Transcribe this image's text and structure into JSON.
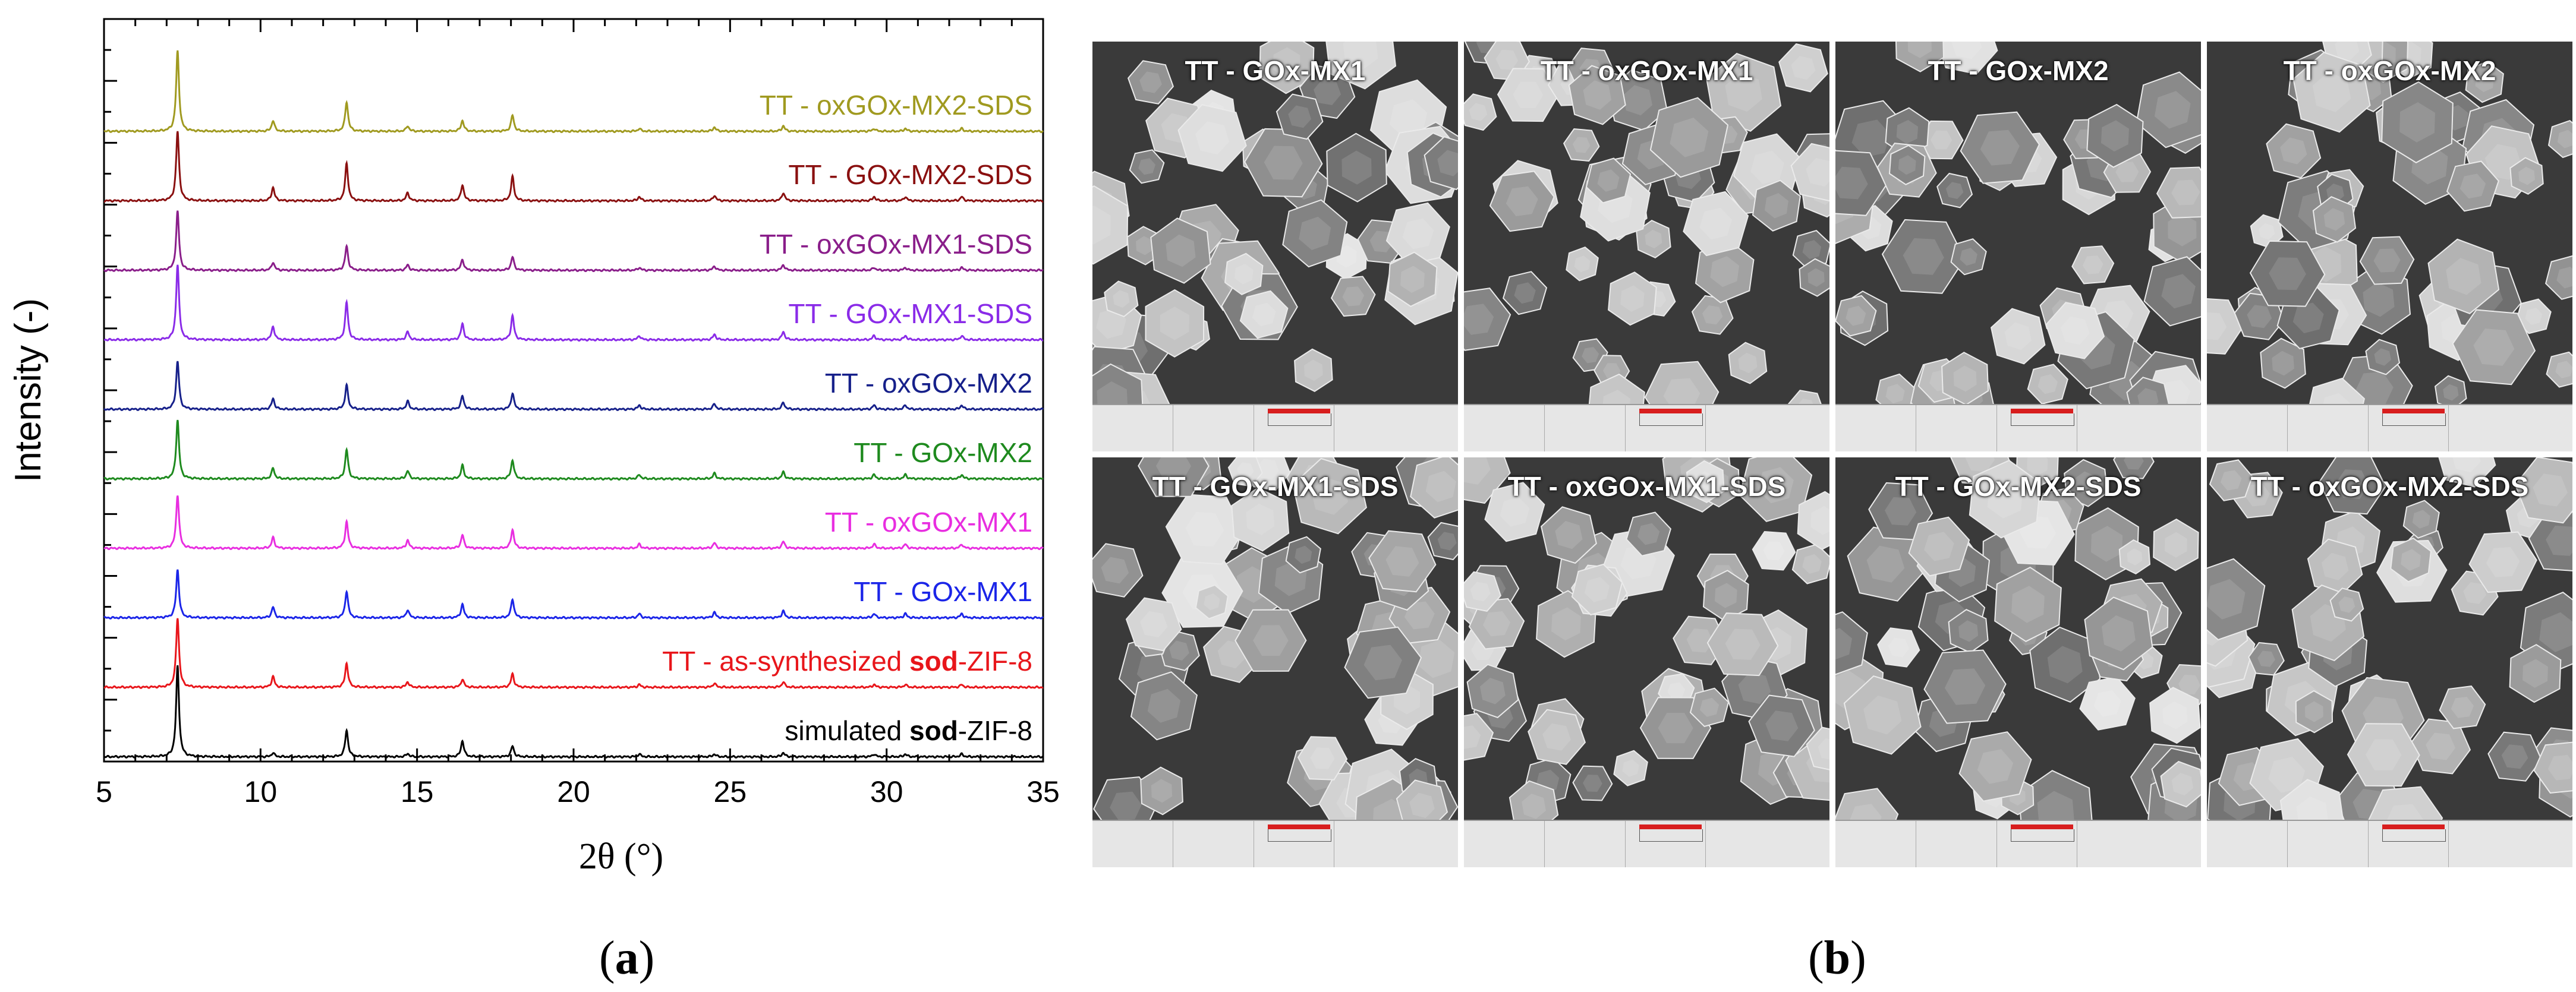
{
  "panel_a_label": "a",
  "panel_b_label": "b",
  "chart_data": {
    "type": "line",
    "xlabel": "2θ (°)",
    "ylabel": "Intensity (-)",
    "xlim": [
      5,
      35
    ],
    "x_ticks": [
      5,
      10,
      15,
      20,
      25,
      30,
      35
    ],
    "grid": false,
    "legend": "inline labels right of each trace",
    "series": [
      {
        "name": "simulated sod-ZIF-8",
        "name_parts": [
          "simulated ",
          "sod",
          "-ZIF-8"
        ],
        "color": "#000000",
        "peaks": [
          [
            7.35,
            34
          ],
          [
            10.4,
            1.5
          ],
          [
            12.75,
            10
          ],
          [
            14.7,
            1.2
          ],
          [
            16.45,
            6
          ],
          [
            18.05,
            4
          ],
          [
            22.1,
            1
          ],
          [
            24.5,
            1
          ],
          [
            26.7,
            1.5
          ],
          [
            29.6,
            1
          ],
          [
            30.6,
            1
          ],
          [
            32.4,
            1
          ]
        ]
      },
      {
        "name": "TT - as-synthesized sod-ZIF-8",
        "name_parts": [
          "TT - as-synthesized ",
          "sod",
          "-ZIF-8"
        ],
        "color": "#e8161b",
        "peaks": [
          [
            7.35,
            26
          ],
          [
            10.4,
            4
          ],
          [
            12.75,
            9
          ],
          [
            14.7,
            2
          ],
          [
            16.45,
            3
          ],
          [
            18.05,
            5
          ],
          [
            22.1,
            1
          ],
          [
            24.5,
            1.5
          ],
          [
            26.7,
            2
          ],
          [
            29.6,
            1
          ],
          [
            30.6,
            1
          ],
          [
            32.4,
            1
          ]
        ]
      },
      {
        "name": "TT - GOx-MX1",
        "color": "#1b25e8",
        "peaks": [
          [
            7.35,
            18
          ],
          [
            10.4,
            4
          ],
          [
            12.75,
            10
          ],
          [
            14.7,
            3
          ],
          [
            16.45,
            5
          ],
          [
            18.05,
            7
          ],
          [
            22.1,
            1.5
          ],
          [
            24.5,
            2
          ],
          [
            26.7,
            2.5
          ],
          [
            29.6,
            1.5
          ],
          [
            30.6,
            1.5
          ],
          [
            32.4,
            1.5
          ]
        ]
      },
      {
        "name": "TT - oxGOx-MX1",
        "color": "#e82ee0",
        "peaks": [
          [
            7.35,
            20
          ],
          [
            10.4,
            4
          ],
          [
            12.75,
            10
          ],
          [
            14.7,
            3
          ],
          [
            16.45,
            5
          ],
          [
            18.05,
            7
          ],
          [
            22.1,
            1.5
          ],
          [
            24.5,
            2
          ],
          [
            26.7,
            2.5
          ],
          [
            29.6,
            1.5
          ],
          [
            30.6,
            1.5
          ],
          [
            32.4,
            1.5
          ]
        ]
      },
      {
        "name": "TT - GOx-MX2",
        "color": "#1e8a1e",
        "peaks": [
          [
            7.35,
            22
          ],
          [
            10.4,
            4
          ],
          [
            12.75,
            11
          ],
          [
            14.7,
            3
          ],
          [
            16.45,
            5
          ],
          [
            18.05,
            7
          ],
          [
            22.1,
            1.5
          ],
          [
            24.5,
            2
          ],
          [
            26.7,
            2.5
          ],
          [
            29.6,
            1.5
          ],
          [
            30.6,
            1.5
          ],
          [
            32.4,
            1.5
          ]
        ]
      },
      {
        "name": "TT - oxGOx-MX2",
        "color": "#16208a",
        "peaks": [
          [
            7.35,
            18
          ],
          [
            10.4,
            4
          ],
          [
            12.75,
            9
          ],
          [
            14.7,
            3
          ],
          [
            16.45,
            5
          ],
          [
            18.05,
            6
          ],
          [
            22.1,
            1.5
          ],
          [
            24.5,
            2
          ],
          [
            26.7,
            2.5
          ],
          [
            29.6,
            1.5
          ],
          [
            30.6,
            1.5
          ],
          [
            32.4,
            1.5
          ]
        ]
      },
      {
        "name": "TT - GOx-MX1-SDS",
        "color": "#8a2be8",
        "peaks": [
          [
            7.35,
            28
          ],
          [
            10.4,
            5
          ],
          [
            12.75,
            14
          ],
          [
            14.7,
            3
          ],
          [
            16.45,
            6
          ],
          [
            18.05,
            9
          ],
          [
            22.1,
            1.5
          ],
          [
            24.5,
            2
          ],
          [
            26.7,
            3
          ],
          [
            29.6,
            1.5
          ],
          [
            30.6,
            1.5
          ],
          [
            32.4,
            1.5
          ]
        ]
      },
      {
        "name": "TT - oxGOx-MX1-SDS",
        "color": "#8a1e8a",
        "peaks": [
          [
            7.35,
            22
          ],
          [
            10.4,
            3
          ],
          [
            12.75,
            9
          ],
          [
            14.7,
            2
          ],
          [
            16.45,
            4
          ],
          [
            18.05,
            5
          ],
          [
            22.1,
            1
          ],
          [
            24.5,
            1.5
          ],
          [
            26.7,
            2
          ],
          [
            29.6,
            1
          ],
          [
            30.6,
            1
          ],
          [
            32.4,
            1
          ]
        ]
      },
      {
        "name": "TT - GOx-MX2-SDS",
        "color": "#8a1010",
        "peaks": [
          [
            7.35,
            26
          ],
          [
            10.4,
            5
          ],
          [
            12.75,
            14
          ],
          [
            14.7,
            3
          ],
          [
            16.45,
            6
          ],
          [
            18.05,
            9
          ],
          [
            22.1,
            1.5
          ],
          [
            24.5,
            2
          ],
          [
            26.7,
            3
          ],
          [
            29.6,
            1.5
          ],
          [
            30.6,
            1.5
          ],
          [
            32.4,
            1.5
          ]
        ]
      },
      {
        "name": "TT - oxGOx-MX2-SDS",
        "color": "#a09a20",
        "peaks": [
          [
            7.35,
            30
          ],
          [
            10.4,
            4
          ],
          [
            12.75,
            11
          ],
          [
            14.7,
            2
          ],
          [
            16.45,
            4
          ],
          [
            18.05,
            6
          ],
          [
            22.1,
            1
          ],
          [
            24.5,
            1.5
          ],
          [
            26.7,
            2
          ],
          [
            29.6,
            1
          ],
          [
            30.6,
            1
          ],
          [
            32.4,
            1
          ]
        ]
      }
    ]
  },
  "sem_images": [
    {
      "title": "TT - GOx-MX1"
    },
    {
      "title": "TT - oxGOx-MX1"
    },
    {
      "title": "TT - GOx-MX2"
    },
    {
      "title": "TT - oxGOx-MX2"
    },
    {
      "title": "TT - GOx-MX1-SDS"
    },
    {
      "title": "TT - oxGOx-MX1-SDS"
    },
    {
      "title": "TT - GOx-MX2-SDS"
    },
    {
      "title": "TT - oxGOx-MX2-SDS"
    }
  ]
}
